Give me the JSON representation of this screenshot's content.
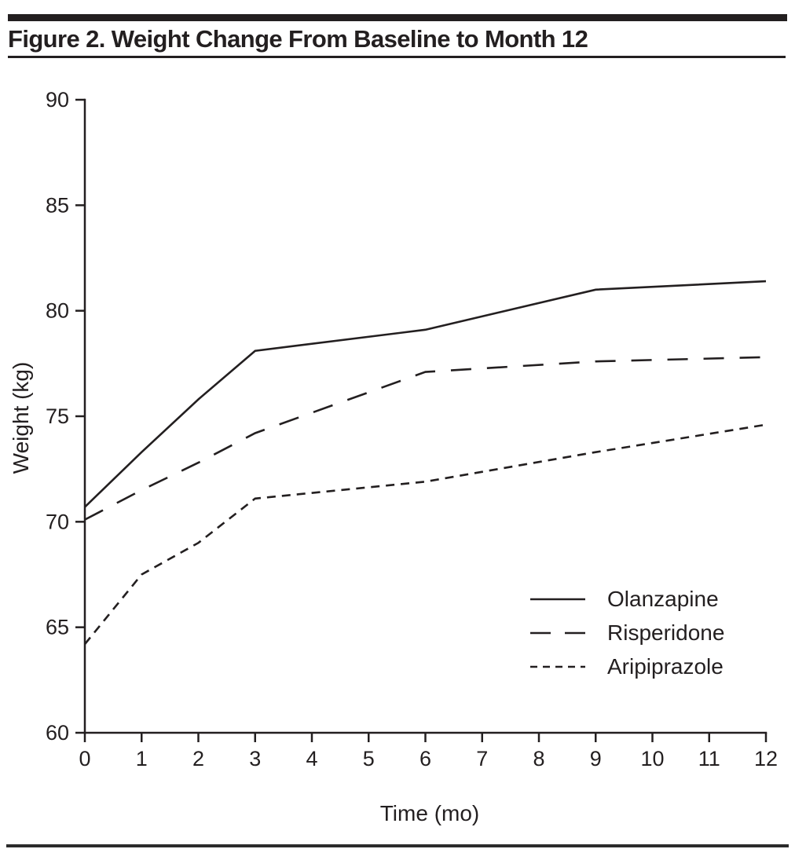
{
  "title": "Figure 2. Weight Change From Baseline to Month 12",
  "chart_data": {
    "type": "line",
    "title": "Figure 2. Weight Change From Baseline to Month 12",
    "xlabel": "Time (mo)",
    "ylabel": "Weight (kg)",
    "xlim": [
      0,
      12
    ],
    "ylim": [
      60,
      90
    ],
    "x_ticks": [
      0,
      1,
      2,
      3,
      4,
      5,
      6,
      7,
      8,
      9,
      10,
      11,
      12
    ],
    "y_ticks": [
      60,
      65,
      70,
      75,
      80,
      85,
      90
    ],
    "grid": false,
    "legend_position": "inside-lower-right",
    "line_color": "#231f20",
    "x": [
      0,
      1,
      2,
      3,
      6,
      9,
      12
    ],
    "series": [
      {
        "name": "Olanzapine",
        "line_style": "solid",
        "values": [
          70.7,
          73.3,
          75.8,
          78.1,
          79.1,
          81.0,
          81.4
        ]
      },
      {
        "name": "Risperidone",
        "line_style": "long-dash",
        "values": [
          70.1,
          71.5,
          72.8,
          74.2,
          77.1,
          77.6,
          77.8
        ]
      },
      {
        "name": "Aripiprazole",
        "line_style": "short-dash",
        "values": [
          64.2,
          67.5,
          69.0,
          71.1,
          71.9,
          73.3,
          74.6
        ]
      }
    ]
  }
}
